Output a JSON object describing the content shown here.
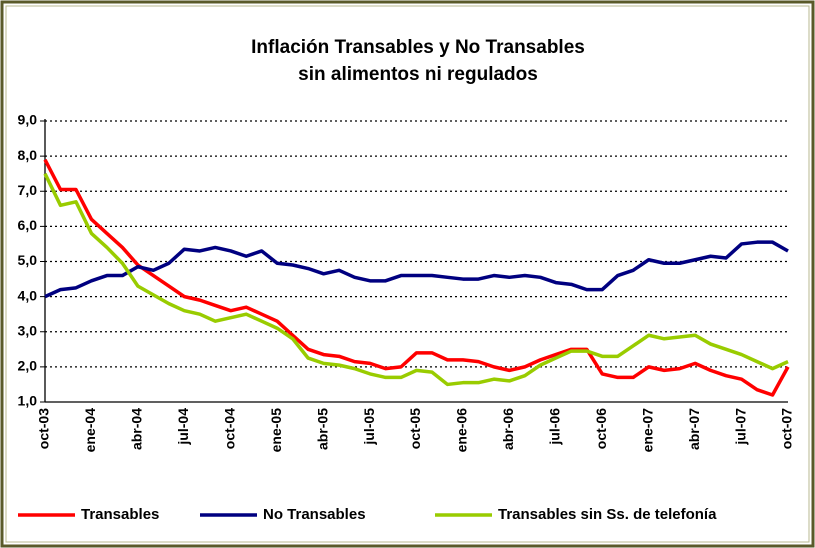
{
  "chart_data": {
    "type": "line",
    "title": [
      "Inflación Transables y No Transables",
      "sin alimentos ni regulados"
    ],
    "categories": [
      "oct-03",
      null,
      null,
      "ene-04",
      null,
      null,
      "abr-04",
      null,
      null,
      "jul-04",
      null,
      null,
      "oct-04",
      null,
      null,
      "ene-05",
      null,
      null,
      "abr-05",
      null,
      null,
      "jul-05",
      null,
      null,
      "oct-05",
      null,
      null,
      "ene-06",
      null,
      null,
      "abr-06",
      null,
      null,
      "jul-06",
      null,
      null,
      "oct-06",
      null,
      null,
      "ene-07",
      null,
      null,
      "abr-07",
      null,
      null,
      "jul-07",
      null,
      null,
      "oct-07"
    ],
    "series": [
      {
        "name": "Transables",
        "color": "#ff0000",
        "values": [
          7.9,
          7.05,
          7.05,
          6.2,
          5.8,
          5.4,
          4.9,
          4.6,
          4.3,
          4.0,
          3.9,
          3.75,
          3.6,
          3.7,
          3.5,
          3.3,
          2.9,
          2.5,
          2.35,
          2.3,
          2.15,
          2.1,
          1.95,
          2.0,
          2.4,
          2.4,
          2.2,
          2.2,
          2.15,
          2.0,
          1.9,
          2.0,
          2.2,
          2.35,
          2.5,
          2.5,
          1.8,
          1.7,
          1.7,
          2.0,
          1.9,
          1.95,
          2.1,
          1.9,
          1.75,
          1.65,
          1.35,
          1.2,
          2.0
        ]
      },
      {
        "name": "No Transables",
        "color": "#000080",
        "values": [
          4.0,
          4.2,
          4.25,
          4.45,
          4.6,
          4.6,
          4.85,
          4.75,
          4.95,
          5.35,
          5.3,
          5.4,
          5.3,
          5.15,
          5.3,
          4.95,
          4.9,
          4.8,
          4.65,
          4.75,
          4.55,
          4.45,
          4.45,
          4.6,
          4.6,
          4.6,
          4.55,
          4.5,
          4.5,
          4.6,
          4.55,
          4.6,
          4.55,
          4.4,
          4.35,
          4.2,
          4.2,
          4.6,
          4.75,
          5.05,
          4.95,
          4.95,
          5.05,
          5.15,
          5.1,
          5.5,
          5.55,
          5.55,
          5.3
        ]
      },
      {
        "name": "Transables sin Ss. de telefonía",
        "color": "#99cc00",
        "values": [
          7.5,
          6.6,
          6.7,
          5.8,
          5.4,
          4.95,
          4.3,
          4.05,
          3.8,
          3.6,
          3.5,
          3.3,
          3.4,
          3.5,
          3.3,
          3.1,
          2.8,
          2.25,
          2.1,
          2.05,
          1.95,
          1.8,
          1.7,
          1.7,
          1.9,
          1.85,
          1.5,
          1.55,
          1.55,
          1.65,
          1.6,
          1.75,
          2.05,
          2.25,
          2.45,
          2.45,
          2.3,
          2.3,
          2.6,
          2.9,
          2.8,
          2.85,
          2.9,
          2.65,
          2.5,
          2.35,
          2.15,
          1.95,
          2.15
        ]
      }
    ],
    "ylim": [
      1,
      9
    ],
    "yticks": [
      {
        "value": 1,
        "label": "1,0"
      },
      {
        "value": 2,
        "label": "2,0"
      },
      {
        "value": 3,
        "label": "3,0"
      },
      {
        "value": 4,
        "label": "4,0"
      },
      {
        "value": 5,
        "label": "5,0"
      },
      {
        "value": 6,
        "label": "6,0"
      },
      {
        "value": 7,
        "label": "7,0"
      },
      {
        "value": 8,
        "label": "8,0"
      },
      {
        "value": 9,
        "label": "9,0"
      }
    ],
    "grid": true,
    "legend": "bottom"
  }
}
